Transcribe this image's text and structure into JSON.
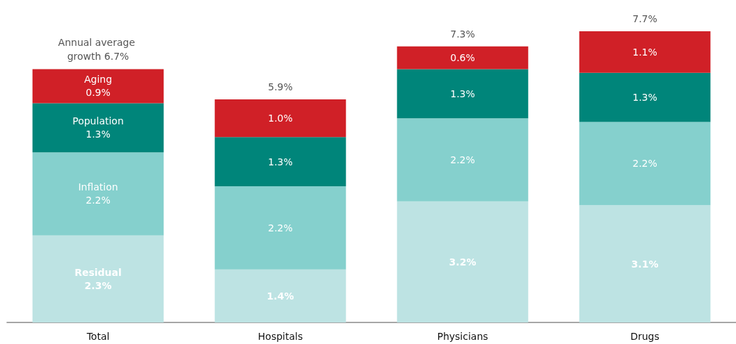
{
  "chart_data": {
    "type": "bar",
    "stacked": true,
    "categories": [
      "Total",
      "Hospitals",
      "Physicians",
      "Drugs"
    ],
    "series": [
      {
        "name": "Residual",
        "color": "#bde3e3",
        "values": [
          2.3,
          1.4,
          3.2,
          3.1
        ],
        "value_labels": [
          "2.3%",
          "1.4%",
          "3.2%",
          "3.1%"
        ]
      },
      {
        "name": "Inflation",
        "color": "#85d0cd",
        "values": [
          2.2,
          2.2,
          2.2,
          2.2
        ],
        "value_labels": [
          "2.2%",
          "2.2%",
          "2.2%",
          "2.2%"
        ]
      },
      {
        "name": "Population",
        "color": "#00857a",
        "values": [
          1.3,
          1.3,
          1.3,
          1.3
        ],
        "value_labels": [
          "1.3%",
          "1.3%",
          "1.3%",
          "1.3%"
        ]
      },
      {
        "name": "Aging",
        "color": "#d02027",
        "values": [
          0.9,
          1.0,
          0.6,
          1.1
        ],
        "value_labels": [
          "0.9%",
          "1.0%",
          "0.6%",
          "1.1%"
        ]
      }
    ],
    "totals": [
      "Annual average growth 6.7%",
      "5.9%",
      "7.3%",
      "7.7%"
    ],
    "legend": false,
    "grid": false
  }
}
